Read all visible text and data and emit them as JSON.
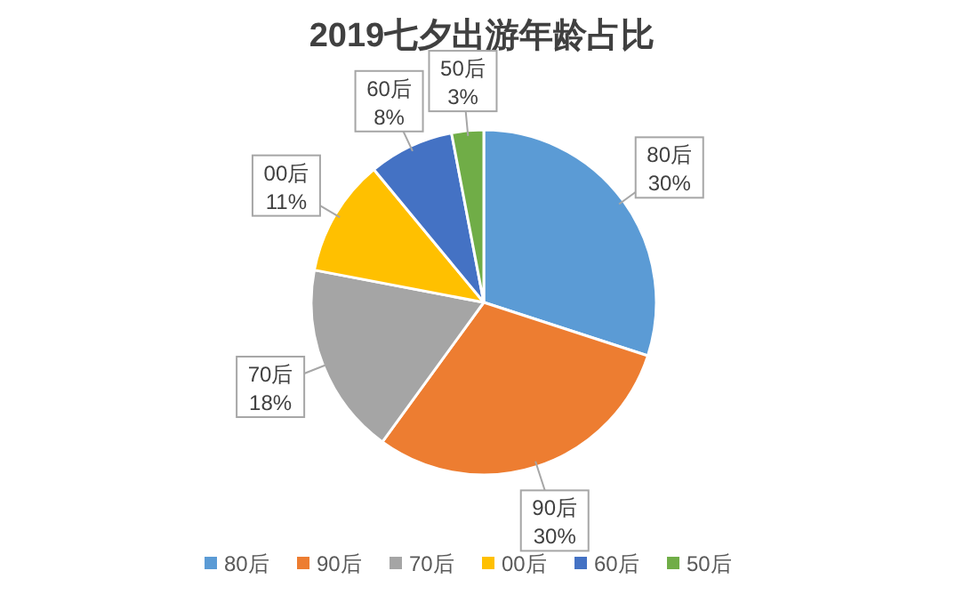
{
  "chart_data": {
    "type": "pie",
    "title": "2019七夕出游年龄占比",
    "categories": [
      "80后",
      "90后",
      "70后",
      "00后",
      "60后",
      "50后"
    ],
    "values": [
      30,
      30,
      18,
      11,
      8,
      3
    ],
    "colors": [
      "#5b9bd5",
      "#ed7d31",
      "#a5a5a5",
      "#ffc000",
      "#4472c4",
      "#70ad47"
    ],
    "value_labels": [
      "30%",
      "30%",
      "18%",
      "11%",
      "8%",
      "3%"
    ],
    "legend": "bottom"
  }
}
